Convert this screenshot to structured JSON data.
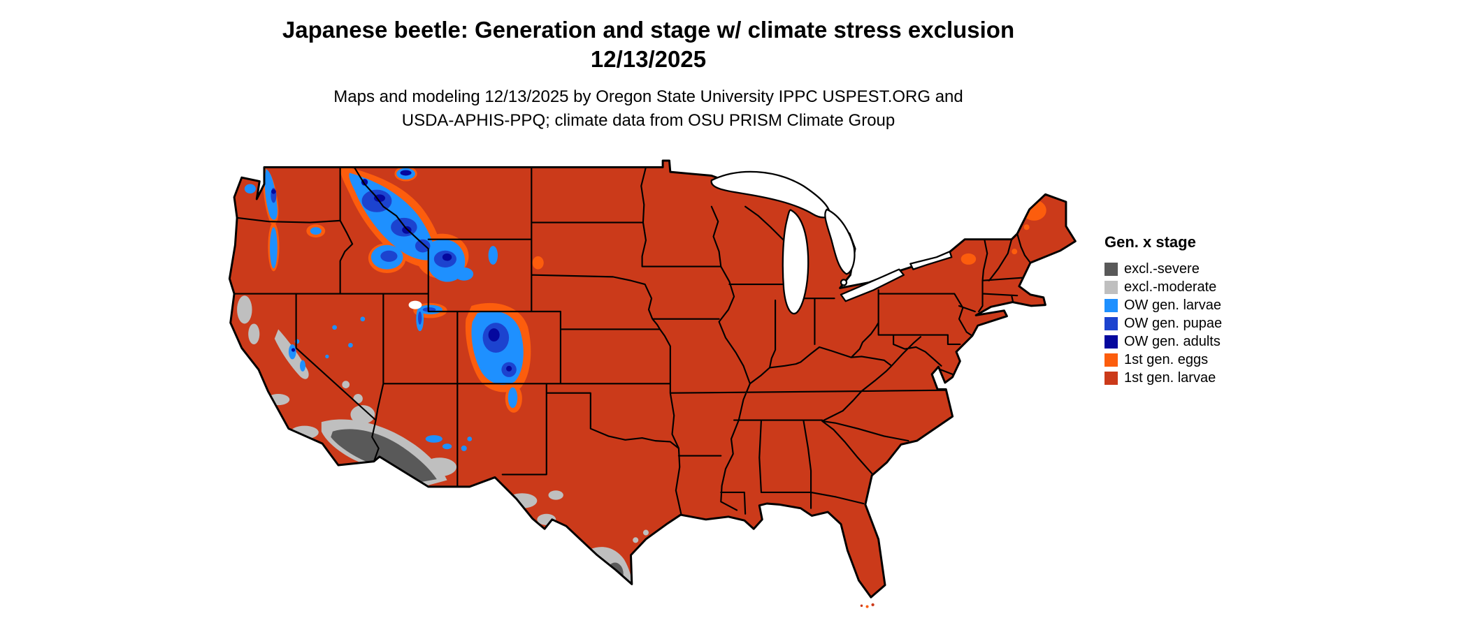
{
  "title": {
    "line1": "Japanese beetle: Generation and stage w/ climate stress exclusion",
    "line2": "12/13/2025"
  },
  "subtitle": {
    "line1": "Maps and modeling 12/13/2025 by Oregon State University IPPC USPEST.ORG and",
    "line2": "USDA-APHIS-PPQ; climate data from OSU PRISM Climate Group"
  },
  "legend": {
    "title": "Gen. x stage",
    "items": [
      {
        "key": "excl_severe",
        "label": "excl.-severe",
        "color": "#595959"
      },
      {
        "key": "excl_moderate",
        "label": "excl.-moderate",
        "color": "#bfbfbf"
      },
      {
        "key": "ow_larvae",
        "label": "OW gen. larvae",
        "color": "#1e90ff"
      },
      {
        "key": "ow_pupae",
        "label": "OW gen. pupae",
        "color": "#1c43cf"
      },
      {
        "key": "ow_adults",
        "label": "OW gen. adults",
        "color": "#05089e"
      },
      {
        "key": "first_eggs",
        "label": "1st gen. eggs",
        "color": "#fc5d0d"
      },
      {
        "key": "first_larvae",
        "label": "1st gen. larvae",
        "color": "#cb3a1a"
      }
    ]
  },
  "map": {
    "type": "choropleth",
    "region": "Contiguous United States",
    "dominant_class": "1st gen. larvae"
  }
}
